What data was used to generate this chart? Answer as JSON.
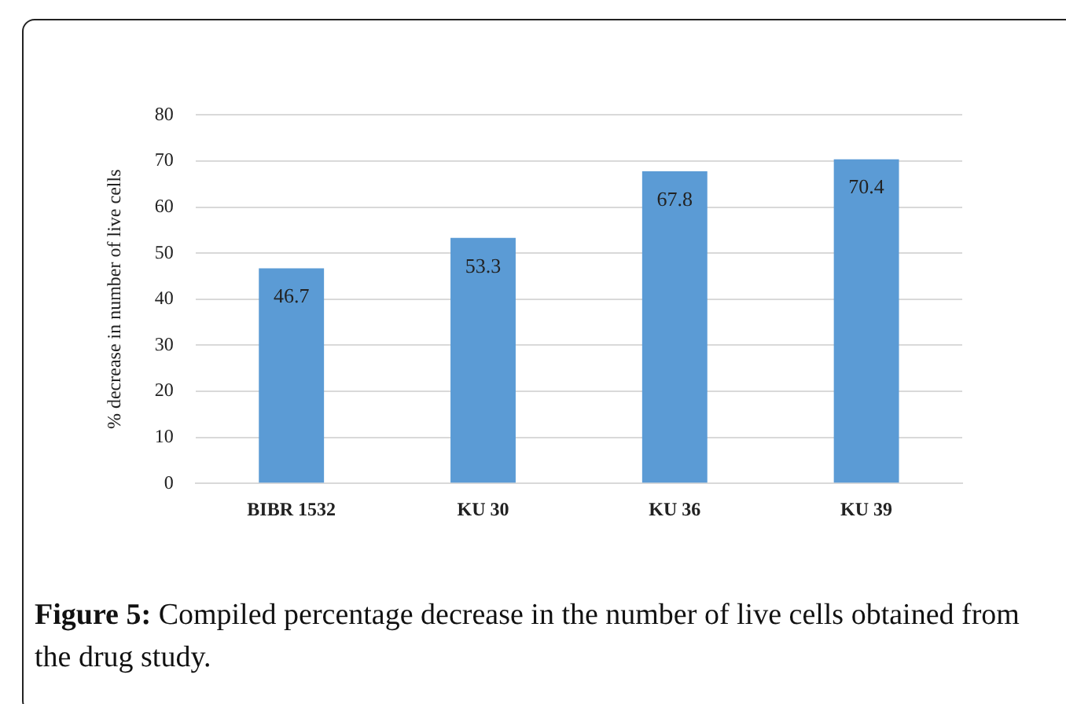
{
  "chart_data": {
    "type": "bar",
    "ylabel": "% decrease in number of live cells",
    "categories": [
      "BIBR 1532",
      "KU 30",
      "KU 36",
      "KU 39"
    ],
    "values": [
      46.7,
      53.3,
      67.8,
      70.4
    ],
    "color": "#5b9bd5",
    "ylim": [
      0,
      80
    ],
    "yticks": [
      0,
      10,
      20,
      30,
      40,
      50,
      60,
      70,
      80
    ],
    "grid": "y",
    "data_labels": true,
    "annotations": [
      "Figure 5: Compiled percentage decrease in the number of live cells obtained from the drug study."
    ]
  }
}
